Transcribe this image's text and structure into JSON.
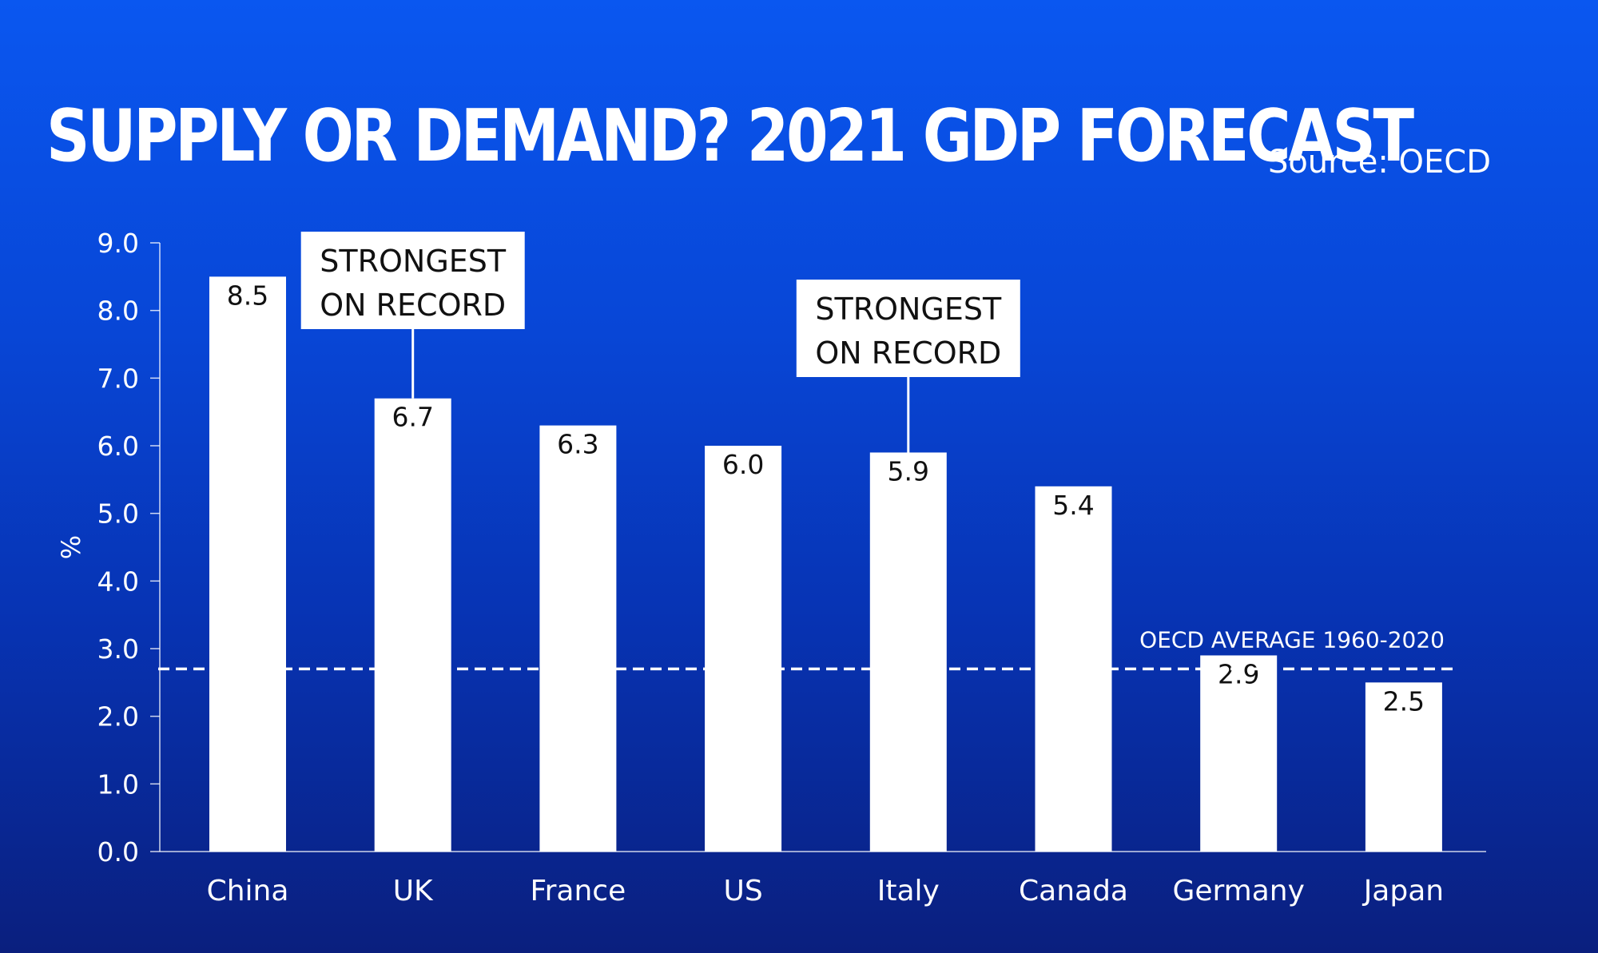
{
  "title": "SUPPLY OR DEMAND? 2021 GDP FORECAST",
  "source": "Source: OECD",
  "chart_data": {
    "type": "bar",
    "categories": [
      "China",
      "UK",
      "France",
      "US",
      "Italy",
      "Canada",
      "Germany",
      "Japan"
    ],
    "values": [
      8.5,
      6.7,
      6.3,
      6.0,
      5.9,
      5.4,
      2.9,
      2.5
    ],
    "value_labels": [
      "8.5",
      "6.7",
      "6.3",
      "6.0",
      "5.9",
      "5.4",
      "2.9",
      "2.5"
    ],
    "ylabel": "%",
    "ylim": [
      0,
      9
    ],
    "yticks": [
      "0.0",
      "1.0",
      "2.0",
      "3.0",
      "4.0",
      "5.0",
      "6.0",
      "7.0",
      "8.0",
      "9.0"
    ],
    "grid": false,
    "reference_line": {
      "label": "OECD AVERAGE 1960-2020",
      "value": 2.7,
      "style": "dashed"
    },
    "annotations": [
      {
        "category": "UK",
        "lines": [
          "STRONGEST",
          "ON RECORD"
        ]
      },
      {
        "category": "Italy",
        "lines": [
          "STRONGEST",
          "ON RECORD"
        ]
      }
    ],
    "colors": {
      "bar": "#ffffff",
      "background_top": "#0a57f0",
      "background_bottom": "#0a1f7e"
    }
  }
}
